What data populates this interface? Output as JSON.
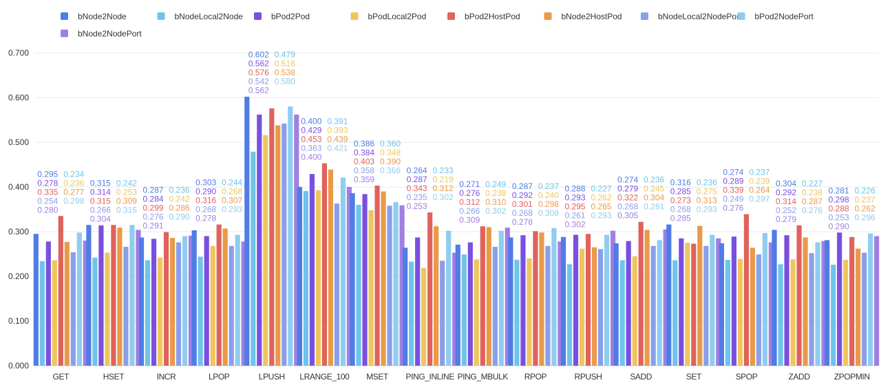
{
  "chart_data": {
    "type": "bar",
    "title": "",
    "xlabel": "",
    "ylabel": "",
    "ylim": [
      0,
      0.7
    ],
    "yticks": [
      "0.000",
      "0.100",
      "0.200",
      "0.300",
      "0.400",
      "0.500",
      "0.600",
      "0.700"
    ],
    "grid": true,
    "legend_position": "top",
    "categories": [
      "GET",
      "HSET",
      "INCR",
      "LPOP",
      "LPUSH",
      "LRANGE_100",
      "MSET",
      "PING_INLINE",
      "PING_MBULK",
      "RPOP",
      "RPUSH",
      "SADD",
      "SET",
      "SPOP",
      "ZADD",
      "ZPOPMIN"
    ],
    "series": [
      {
        "name": "bNode2Node",
        "color": "#4f7ce6",
        "values": [
          0.295,
          0.315,
          0.287,
          0.303,
          0.602,
          0.4,
          0.386,
          0.264,
          0.271,
          0.287,
          0.288,
          0.274,
          0.316,
          0.274,
          0.304,
          0.281
        ]
      },
      {
        "name": "bNodeLocal2Node",
        "color": "#6ec4ea",
        "values": [
          0.234,
          0.242,
          0.236,
          0.244,
          0.479,
          0.391,
          0.36,
          0.233,
          0.249,
          0.237,
          0.227,
          0.236,
          0.236,
          0.237,
          0.227,
          0.226
        ]
      },
      {
        "name": "bPod2Pod",
        "color": "#7a4fe0",
        "values": [
          0.278,
          0.314,
          0.284,
          0.29,
          0.562,
          0.429,
          0.384,
          0.287,
          0.276,
          0.292,
          0.293,
          0.279,
          0.285,
          0.289,
          0.292,
          0.298
        ]
      },
      {
        "name": "bPodLocal2Pod",
        "color": "#eec65c",
        "values": [
          0.236,
          0.253,
          0.242,
          0.268,
          0.516,
          0.393,
          0.348,
          0.219,
          0.238,
          0.24,
          0.262,
          0.245,
          0.275,
          0.239,
          0.238,
          0.237
        ]
      },
      {
        "name": "bPod2HostPod",
        "color": "#e0625c",
        "values": [
          0.335,
          0.315,
          0.299,
          0.316,
          0.576,
          0.453,
          0.403,
          0.343,
          0.312,
          0.301,
          0.295,
          0.322,
          0.273,
          0.339,
          0.314,
          0.288
        ]
      },
      {
        "name": "bNode2HostPod",
        "color": "#e99a48",
        "values": [
          0.277,
          0.309,
          0.286,
          0.307,
          0.538,
          0.439,
          0.39,
          0.312,
          0.31,
          0.298,
          0.265,
          0.304,
          0.313,
          0.264,
          0.287,
          0.262
        ]
      },
      {
        "name": "bNodeLocal2NodePort",
        "color": "#8a9fea",
        "values": [
          0.254,
          0.266,
          0.276,
          0.268,
          0.542,
          0.363,
          0.358,
          0.235,
          0.266,
          0.268,
          0.261,
          0.268,
          0.268,
          0.249,
          0.252,
          0.253
        ]
      },
      {
        "name": "bPod2NodePort",
        "color": "#8fcdef",
        "values": [
          0.298,
          0.315,
          0.29,
          0.293,
          0.58,
          0.421,
          0.366,
          0.302,
          0.302,
          0.308,
          0.293,
          0.281,
          0.293,
          0.297,
          0.276,
          0.296
        ]
      },
      {
        "name": "bNode2NodePort",
        "color": "#a07fe2",
        "values": [
          0.28,
          0.304,
          0.291,
          0.278,
          0.562,
          0.4,
          0.359,
          0.253,
          0.309,
          0.278,
          0.302,
          0.305,
          0.285,
          0.276,
          0.279,
          0.29
        ]
      }
    ]
  }
}
